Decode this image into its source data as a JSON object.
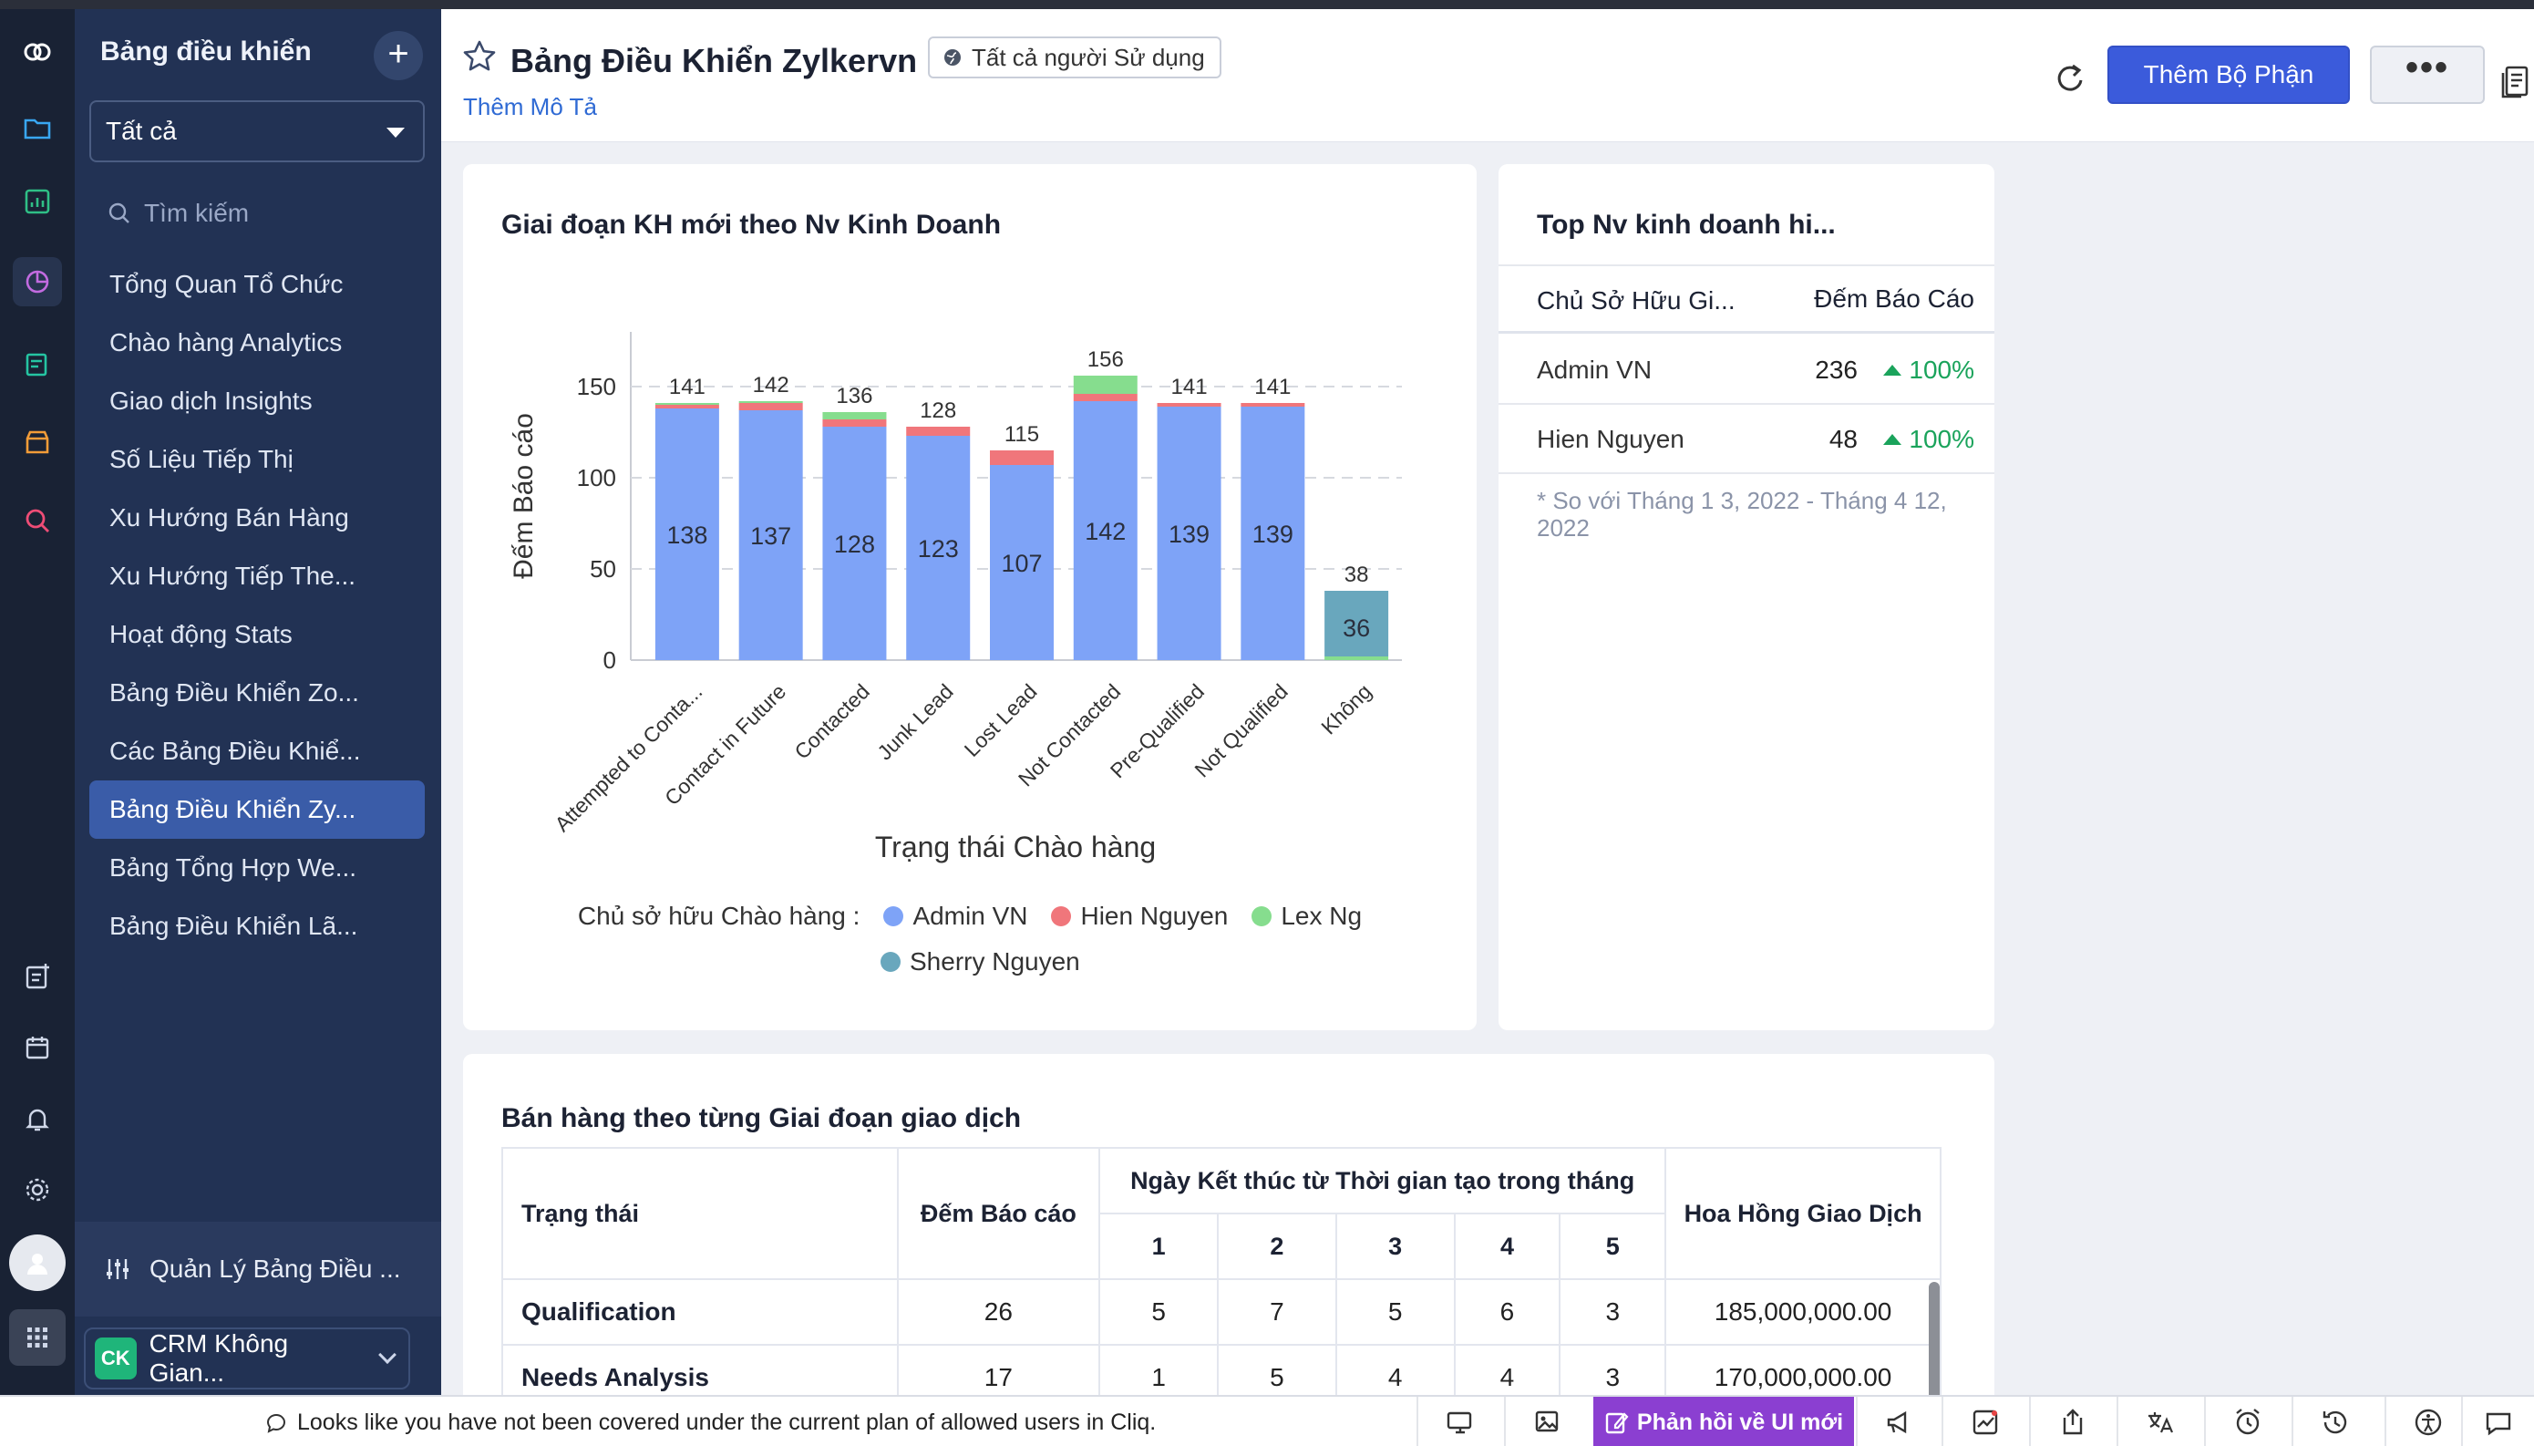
{
  "sidebar": {
    "title": "Bảng điều khiển",
    "filter": "Tất cả",
    "search_placeholder": "Tìm kiếm",
    "items": [
      {
        "label": "Tổng Quan Tổ Chức"
      },
      {
        "label": "Chào hàng Analytics"
      },
      {
        "label": "Giao dịch Insights"
      },
      {
        "label": "Số Liệu Tiếp Thị"
      },
      {
        "label": "Xu Hướng Bán Hàng"
      },
      {
        "label": "Xu Hướng Tiếp The..."
      },
      {
        "label": "Hoạt động Stats"
      },
      {
        "label": "Bảng Điều Khiển Zo..."
      },
      {
        "label": "Các Bảng Điều Khiể..."
      },
      {
        "label": "Bảng Điều Khiển Zy..."
      },
      {
        "label": "Bảng Tổng Hợp We..."
      },
      {
        "label": "Bảng Điều Khiển Lã..."
      }
    ],
    "manage_label": "Quản Lý Bảng Điều ...",
    "org_badge": "CK",
    "org_name": "CRM Không Gian..."
  },
  "header": {
    "title": "Bảng Điều Khiển Zylkervn",
    "audience": "Tất cả người Sử dụng",
    "add_description": "Thêm Mô Tả",
    "add_component": "Thêm Bộ Phận",
    "more": "•••"
  },
  "chart_card": {
    "title": "Giai đoạn KH mới theo Nv Kinh Doanh",
    "legend_label": "Chủ sở hữu Chào hàng :"
  },
  "chart_data": {
    "type": "bar",
    "stacked": true,
    "title": "Giai đoạn KH mới theo Nv Kinh Doanh",
    "xlabel": "Trạng thái Chào hàng",
    "ylabel": "Đếm Báo cáo",
    "ylim": [
      0,
      180
    ],
    "yticks": [
      0,
      50,
      100,
      150
    ],
    "categories": [
      "Attempted to Conta...",
      "Contact in Future",
      "Contacted",
      "Junk Lead",
      "Lost Lead",
      "Not Contacted",
      "Pre-Qualified",
      "Not Qualified",
      "Không"
    ],
    "totals": [
      141,
      142,
      136,
      128,
      115,
      156,
      141,
      141,
      38
    ],
    "series": [
      {
        "name": "Admin VN",
        "color": "#7ea3f7",
        "values": [
          138,
          137,
          128,
          123,
          107,
          142,
          139,
          139,
          0
        ]
      },
      {
        "name": "Hien Nguyen",
        "color": "#f0767b",
        "values": [
          2,
          4,
          4,
          5,
          8,
          4,
          2,
          2,
          0
        ]
      },
      {
        "name": "Lex Ng",
        "color": "#86dd8e",
        "values": [
          1,
          1,
          4,
          0,
          0,
          10,
          0,
          0,
          2
        ]
      },
      {
        "name": "Sherry Nguyen",
        "color": "#69a7bd",
        "values": [
          0,
          0,
          0,
          0,
          0,
          0,
          0,
          0,
          36
        ]
      }
    ],
    "inner_labels": [
      138,
      137,
      128,
      123,
      107,
      142,
      139,
      139,
      36
    ],
    "legend_position": "bottom",
    "grid": true
  },
  "top_card": {
    "title": "Top Nv kinh doanh hi...",
    "col_owner": "Chủ Sở Hữu Gi...",
    "col_count": "Đếm Báo Cáo",
    "rows": [
      {
        "name": "Admin VN",
        "value": "236",
        "pct": "100%"
      },
      {
        "name": "Hien Nguyen",
        "value": "48",
        "pct": "100%"
      }
    ],
    "note": "* So với Tháng 1 3, 2022 - Tháng 4 12, 2022"
  },
  "table_card": {
    "title": "Bán hàng theo từng Giai đoạn giao dịch",
    "h_status": "Trạng thái",
    "h_count": "Đếm Báo cáo",
    "h_group": "Ngày Kết thúc từ Thời gian tạo trong tháng",
    "h_commission": "Hoa Hồng Giao Dịch",
    "months": [
      "1",
      "2",
      "3",
      "4",
      "5"
    ],
    "rows": [
      {
        "status": "Qualification",
        "count": "26",
        "m": [
          "5",
          "7",
          "5",
          "6",
          "3"
        ],
        "commission": "185,000,000.00"
      },
      {
        "status": "Needs Analysis",
        "count": "17",
        "m": [
          "1",
          "5",
          "4",
          "4",
          "3"
        ],
        "commission": "170,000,000.00"
      }
    ]
  },
  "status_bar": {
    "message": "Looks like you have not been covered under the current plan of allowed users in Cliq.",
    "feedback": "Phản hồi về UI mới"
  }
}
